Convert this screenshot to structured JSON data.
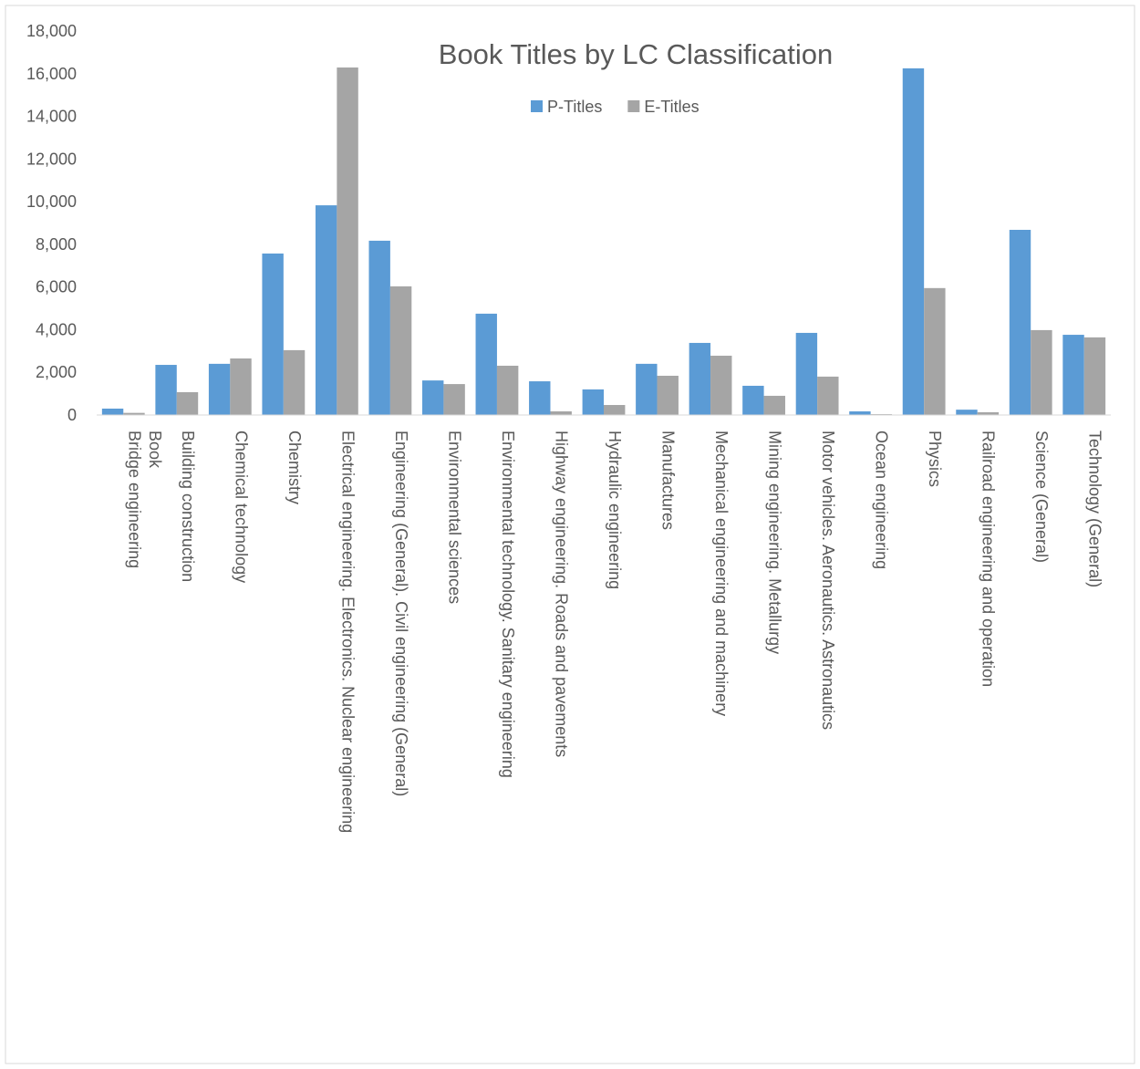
{
  "chart_data": {
    "type": "bar",
    "title": "Book Titles by LC Classification",
    "categories": [
      "Bridge engineering\nBook",
      "Building construction",
      "Chemical technology",
      "Chemistry",
      "Electrical engineering.  Electronics.  Nuclear engineering",
      "Engineering (General).  Civil engineering (General)",
      "Environmental sciences",
      "Environmental technology.  Sanitary engineering",
      "Highway engineering.  Roads and pavements",
      "Hydraulic engineering",
      "Manufactures",
      "Mechanical engineering and machinery",
      "Mining engineering.  Metallurgy",
      "Motor vehicles.  Aeronautics.  Astronautics",
      "Ocean engineering",
      "Physics",
      "Railroad engineering and operation",
      "Science (General)",
      "Technology (General)"
    ],
    "series": [
      {
        "name": "P-Titles",
        "color": "#5b9bd5",
        "values": [
          300,
          2350,
          2400,
          7570,
          9830,
          8170,
          1620,
          4750,
          1580,
          1200,
          2400,
          3380,
          1370,
          3850,
          170,
          16250,
          250,
          8680,
          3760
        ]
      },
      {
        "name": "E-Titles",
        "color": "#a5a5a5",
        "values": [
          100,
          1070,
          2650,
          3040,
          16290,
          6030,
          1450,
          2310,
          170,
          470,
          1840,
          2780,
          900,
          1800,
          40,
          5950,
          130,
          3980,
          3640
        ]
      }
    ],
    "ylim": [
      0,
      18000
    ],
    "yticks": [
      0,
      {
        "value": 2000,
        "label": "2,000"
      },
      {
        "value": 4000,
        "label": "4,000"
      },
      {
        "value": 6000,
        "label": "6,000"
      },
      {
        "value": 8000,
        "label": "8,000"
      },
      {
        "value": 10000,
        "label": "10,000"
      },
      {
        "value": 12000,
        "label": "12,000"
      },
      {
        "value": 14000,
        "label": "14,000"
      },
      {
        "value": 16000,
        "label": "16,000"
      },
      {
        "value": 18000,
        "label": "18,000"
      }
    ],
    "grid": false,
    "legend": "top"
  }
}
